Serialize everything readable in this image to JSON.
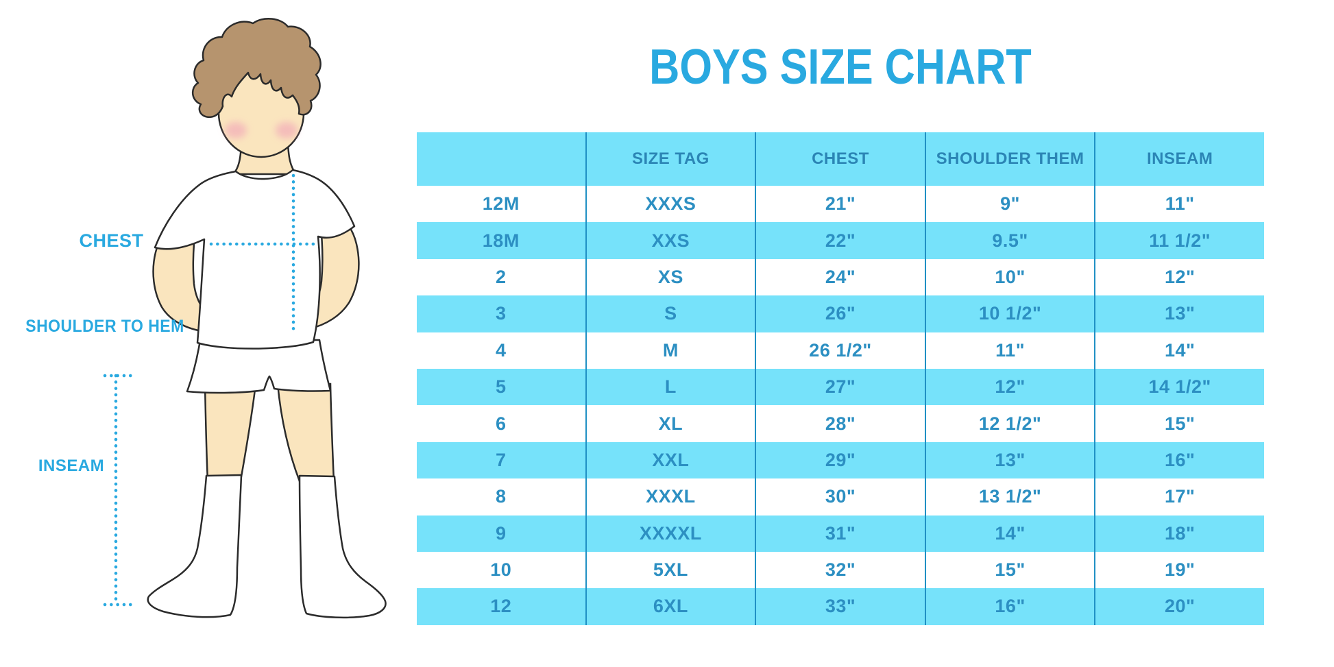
{
  "title": "BOYS SIZE CHART",
  "figure": {
    "description": "outline illustration of a boy in white t-shirt, shorts and knee socks with dotted measurement guides",
    "labels": {
      "chest": "CHEST",
      "shoulder_to_hem": "SHOULDER TO HEM",
      "inseam": "INSEAM"
    }
  },
  "colors": {
    "accent_blue": "#29a9e0",
    "band_cyan": "#76e2fa",
    "header_text": "#2b85b5",
    "cell_text": "#2c8fc2",
    "divider": "#2090c4",
    "hair_brown": "#b6946e",
    "skin": "#fae5be",
    "blush_pink": "#f1a3b8",
    "outline": "#2b2b2b"
  },
  "chart_data": {
    "type": "table",
    "title": "BOYS SIZE CHART",
    "columns": [
      "",
      "SIZE TAG",
      "CHEST",
      "SHOULDER THEM",
      "INSEAM"
    ],
    "rows": [
      [
        "12M",
        "XXXS",
        "21\"",
        "9\"",
        "11\""
      ],
      [
        "18M",
        "XXS",
        "22\"",
        "9.5\"",
        "11 1/2\""
      ],
      [
        "2",
        "XS",
        "24\"",
        "10\"",
        "12\""
      ],
      [
        "3",
        "S",
        "26\"",
        "10 1/2\"",
        "13\""
      ],
      [
        "4",
        "M",
        "26 1/2\"",
        "11\"",
        "14\""
      ],
      [
        "5",
        "L",
        "27\"",
        "12\"",
        "14 1/2\""
      ],
      [
        "6",
        "XL",
        "28\"",
        "12 1/2\"",
        "15\""
      ],
      [
        "7",
        "XXL",
        "29\"",
        "13\"",
        "16\""
      ],
      [
        "8",
        "XXXL",
        "30\"",
        "13 1/2\"",
        "17\""
      ],
      [
        "9",
        "XXXXL",
        "31\"",
        "14\"",
        "18\""
      ],
      [
        "10",
        "5XL",
        "32\"",
        "15\"",
        "19\""
      ],
      [
        "12",
        "6XL",
        "33\"",
        "16\"",
        "20\""
      ]
    ],
    "layout": {
      "row_striping": "alternating white and cyan bands starting white",
      "header_background": "cyan band",
      "grid": "vertical column dividers only"
    }
  }
}
